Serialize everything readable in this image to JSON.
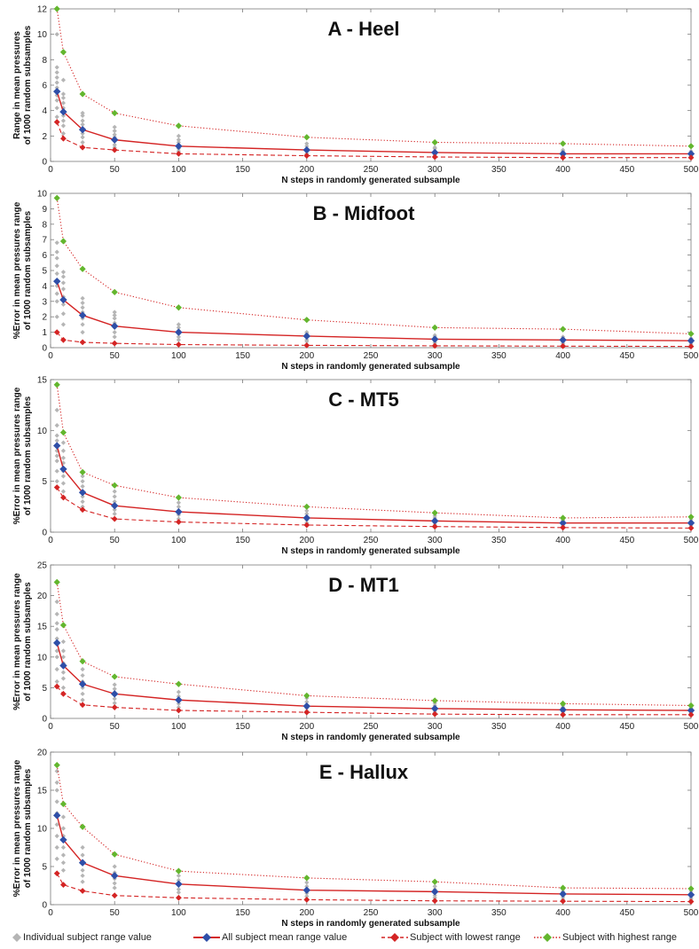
{
  "colors": {
    "individual": "#b5b5b5",
    "mean_line": "#d42424",
    "mean_marker": "#2f4fa8",
    "lowest": "#d42424",
    "highest_line": "#d42424",
    "highest_marker": "#63b62e"
  },
  "legend": {
    "individual": "Individual subject range value",
    "mean": "All subject mean range value",
    "lowest": "Subject with lowest range",
    "highest": "Subject with highest range"
  },
  "chart_data": [
    {
      "type": "line",
      "title": "A - Heel",
      "xlabel": "N steps in randomly generated subsample",
      "ylabel": [
        "Range in mean pressures",
        "of 1000 random subsamples"
      ],
      "xlim": [
        0,
        500
      ],
      "ylim": [
        0,
        12
      ],
      "yticks": [
        0,
        2,
        4,
        6,
        8,
        10,
        12
      ],
      "xticks": [
        0,
        50,
        100,
        150,
        200,
        250,
        300,
        350,
        400,
        450,
        500
      ],
      "x": [
        5,
        10,
        25,
        50,
        100,
        200,
        300,
        400,
        500
      ],
      "series": [
        {
          "name": "All subject mean range value",
          "values": [
            5.5,
            3.9,
            2.5,
            1.7,
            1.2,
            0.9,
            0.7,
            0.6,
            0.6
          ]
        },
        {
          "name": "Subject with lowest range",
          "values": [
            3.1,
            1.8,
            1.1,
            0.9,
            0.6,
            0.45,
            0.35,
            0.3,
            0.3
          ]
        },
        {
          "name": "Subject with highest range",
          "values": [
            12.0,
            8.6,
            5.3,
            3.8,
            2.8,
            1.9,
            1.5,
            1.4,
            1.2
          ]
        }
      ],
      "individual": [
        {
          "x": 5,
          "values": [
            3.5,
            4.2,
            4.8,
            5.2,
            5.8,
            6.2,
            6.6,
            7.0,
            7.4,
            10.0
          ]
        },
        {
          "x": 10,
          "values": [
            2.2,
            2.8,
            3.2,
            3.6,
            4.2,
            4.6,
            5.0,
            5.3,
            6.4
          ]
        },
        {
          "x": 25,
          "values": [
            1.5,
            1.9,
            2.2,
            2.6,
            2.9,
            3.2,
            3.6,
            3.8
          ]
        },
        {
          "x": 50,
          "values": [
            1.1,
            1.3,
            1.6,
            1.9,
            2.1,
            2.4,
            2.7
          ]
        },
        {
          "x": 100,
          "values": [
            0.8,
            1.0,
            1.3,
            1.5,
            1.7,
            2.0
          ]
        },
        {
          "x": 200,
          "values": [
            0.6,
            0.8,
            1.0,
            1.2,
            1.4
          ]
        },
        {
          "x": 300,
          "values": [
            0.5,
            0.6,
            0.8,
            1.0,
            1.1
          ]
        },
        {
          "x": 400,
          "values": [
            0.4,
            0.5,
            0.7,
            0.8,
            0.9
          ]
        },
        {
          "x": 500,
          "values": [
            0.4,
            0.5,
            0.6,
            0.7,
            0.8
          ]
        }
      ]
    },
    {
      "type": "line",
      "title": "B - Midfoot",
      "xlabel": "N steps in randomly generated subsample",
      "ylabel": [
        "%Error in mean pressures range",
        "of 1000 random subsamples"
      ],
      "xlim": [
        0,
        500
      ],
      "ylim": [
        0,
        10
      ],
      "yticks": [
        0,
        1,
        2,
        3,
        4,
        5,
        6,
        7,
        8,
        9,
        10
      ],
      "xticks": [
        0,
        50,
        100,
        150,
        200,
        250,
        300,
        350,
        400,
        450,
        500
      ],
      "x": [
        5,
        10,
        25,
        50,
        100,
        200,
        300,
        400,
        500
      ],
      "series": [
        {
          "name": "All subject mean range value",
          "values": [
            4.3,
            3.1,
            2.1,
            1.4,
            1.0,
            0.75,
            0.55,
            0.5,
            0.45
          ]
        },
        {
          "name": "Subject with lowest range",
          "values": [
            1.0,
            0.5,
            0.35,
            0.28,
            0.2,
            0.15,
            0.12,
            0.1,
            0.08
          ]
        },
        {
          "name": "Subject with highest range",
          "values": [
            9.7,
            6.9,
            5.1,
            3.6,
            2.6,
            1.8,
            1.3,
            1.2,
            0.9
          ]
        }
      ],
      "individual": [
        {
          "x": 5,
          "values": [
            2.0,
            3.0,
            3.5,
            4.0,
            4.8,
            5.3,
            5.8,
            6.2,
            6.8
          ]
        },
        {
          "x": 10,
          "values": [
            1.5,
            2.2,
            2.8,
            3.3,
            3.8,
            4.2,
            4.6,
            4.9
          ]
        },
        {
          "x": 25,
          "values": [
            1.0,
            1.5,
            1.9,
            2.3,
            2.6,
            2.9,
            3.2
          ]
        },
        {
          "x": 50,
          "values": [
            0.7,
            1.0,
            1.3,
            1.6,
            1.9,
            2.1,
            2.3
          ]
        },
        {
          "x": 100,
          "values": [
            0.5,
            0.7,
            0.9,
            1.1,
            1.3,
            1.5
          ]
        },
        {
          "x": 200,
          "values": [
            0.4,
            0.5,
            0.7,
            0.9,
            1.0
          ]
        },
        {
          "x": 300,
          "values": [
            0.3,
            0.4,
            0.5,
            0.7,
            0.8
          ]
        },
        {
          "x": 400,
          "values": [
            0.25,
            0.35,
            0.5,
            0.6,
            0.7
          ]
        },
        {
          "x": 500,
          "values": [
            0.2,
            0.3,
            0.4,
            0.5,
            0.6
          ]
        }
      ]
    },
    {
      "type": "line",
      "title": "C - MT5",
      "xlabel": "N steps in randomly generated subsample",
      "ylabel": [
        "%Error in mean pressures range",
        "of 1000 random subsamples"
      ],
      "xlim": [
        0,
        500
      ],
      "ylim": [
        0,
        15
      ],
      "yticks": [
        0,
        5,
        10,
        15
      ],
      "xticks": [
        0,
        50,
        100,
        150,
        200,
        250,
        300,
        350,
        400,
        450,
        500
      ],
      "x": [
        5,
        10,
        25,
        50,
        100,
        200,
        300,
        400,
        500
      ],
      "series": [
        {
          "name": "All subject mean range value",
          "values": [
            8.5,
            6.2,
            3.9,
            2.6,
            2.0,
            1.4,
            1.1,
            0.9,
            0.9
          ]
        },
        {
          "name": "Subject with lowest range",
          "values": [
            4.4,
            3.4,
            2.2,
            1.3,
            1.0,
            0.7,
            0.55,
            0.45,
            0.4
          ]
        },
        {
          "name": "Subject with highest range",
          "values": [
            14.5,
            9.8,
            5.9,
            4.6,
            3.4,
            2.5,
            1.9,
            1.4,
            1.5
          ]
        }
      ],
      "individual": [
        {
          "x": 5,
          "values": [
            5.0,
            6.0,
            7.0,
            7.5,
            8.0,
            9.0,
            9.5,
            10.5,
            12.0
          ]
        },
        {
          "x": 10,
          "values": [
            4.0,
            4.8,
            5.5,
            6.0,
            6.8,
            7.3,
            8.0,
            8.8
          ]
        },
        {
          "x": 25,
          "values": [
            2.5,
            3.0,
            3.5,
            4.0,
            4.5,
            5.0,
            5.5
          ]
        },
        {
          "x": 50,
          "values": [
            1.8,
            2.2,
            2.6,
            3.0,
            3.5,
            4.0
          ]
        },
        {
          "x": 100,
          "values": [
            1.3,
            1.7,
            2.1,
            2.5,
            2.9
          ]
        },
        {
          "x": 200,
          "values": [
            0.9,
            1.2,
            1.5,
            1.8,
            2.1
          ]
        },
        {
          "x": 300,
          "values": [
            0.7,
            0.9,
            1.2,
            1.4,
            1.6
          ]
        },
        {
          "x": 400,
          "values": [
            0.6,
            0.8,
            1.0,
            1.2
          ]
        },
        {
          "x": 500,
          "values": [
            0.5,
            0.7,
            0.9,
            1.1,
            1.3
          ]
        }
      ]
    },
    {
      "type": "line",
      "title": "D - MT1",
      "xlabel": "N steps in randomly generated subsample",
      "ylabel": [
        "%Error in mean pressures range",
        "of 1000 random subsamples"
      ],
      "xlim": [
        0,
        500
      ],
      "ylim": [
        0,
        25
      ],
      "yticks": [
        0,
        5,
        10,
        15,
        20,
        25
      ],
      "xticks": [
        0,
        50,
        100,
        150,
        200,
        250,
        300,
        350,
        400,
        450,
        500
      ],
      "x": [
        5,
        10,
        25,
        50,
        100,
        200,
        300,
        400,
        500
      ],
      "series": [
        {
          "name": "All subject mean range value",
          "values": [
            12.3,
            8.6,
            5.6,
            4.0,
            3.0,
            2.0,
            1.6,
            1.4,
            1.3
          ]
        },
        {
          "name": "Subject with lowest range",
          "values": [
            5.2,
            4.0,
            2.2,
            1.8,
            1.3,
            1.0,
            0.7,
            0.6,
            0.6
          ]
        },
        {
          "name": "Subject with highest range",
          "values": [
            22.2,
            15.2,
            9.3,
            6.8,
            5.6,
            3.7,
            2.9,
            2.4,
            2.1
          ]
        }
      ],
      "individual": [
        {
          "x": 5,
          "values": [
            6.0,
            8.0,
            10.0,
            11.0,
            13.0,
            14.5,
            15.5,
            17.0,
            19.0
          ]
        },
        {
          "x": 10,
          "values": [
            5.0,
            6.5,
            7.5,
            9.0,
            10.0,
            11.0,
            12.5
          ]
        },
        {
          "x": 25,
          "values": [
            3.0,
            4.0,
            5.0,
            6.0,
            7.0,
            8.0
          ]
        },
        {
          "x": 50,
          "values": [
            2.5,
            3.2,
            4.0,
            4.8,
            5.5
          ]
        },
        {
          "x": 100,
          "values": [
            1.8,
            2.4,
            3.0,
            3.6,
            4.3
          ]
        },
        {
          "x": 200,
          "values": [
            1.2,
            1.7,
            2.2,
            2.7,
            3.3
          ]
        },
        {
          "x": 300,
          "values": [
            1.0,
            1.3,
            1.7,
            2.1,
            2.5
          ]
        },
        {
          "x": 400,
          "values": [
            0.8,
            1.1,
            1.4,
            1.8,
            2.1
          ]
        },
        {
          "x": 500,
          "values": [
            0.8,
            1.0,
            1.3,
            1.6,
            1.9
          ]
        }
      ]
    },
    {
      "type": "line",
      "title": "E - Hallux",
      "xlabel": "N steps in randomly generated subsample",
      "ylabel": [
        "%Error in mean pressures range",
        "of 1000 random subsamples"
      ],
      "xlim": [
        0,
        500
      ],
      "ylim": [
        0,
        20
      ],
      "yticks": [
        0,
        5,
        10,
        15,
        20
      ],
      "xticks": [
        0,
        50,
        100,
        150,
        200,
        250,
        300,
        350,
        400,
        450,
        500
      ],
      "x": [
        5,
        10,
        25,
        50,
        100,
        200,
        300,
        400,
        500
      ],
      "series": [
        {
          "name": "All subject mean range value",
          "values": [
            11.7,
            8.5,
            5.5,
            3.8,
            2.7,
            1.9,
            1.7,
            1.4,
            1.3
          ]
        },
        {
          "name": "Subject with lowest range",
          "values": [
            4.1,
            2.6,
            1.8,
            1.2,
            0.9,
            0.65,
            0.5,
            0.45,
            0.4
          ]
        },
        {
          "name": "Subject with highest range",
          "values": [
            18.3,
            13.2,
            10.2,
            6.6,
            4.4,
            3.5,
            3.0,
            2.2,
            2.1
          ]
        }
      ],
      "individual": [
        {
          "x": 5,
          "values": [
            6.0,
            7.5,
            9.0,
            10.5,
            12.0,
            13.5,
            15.0,
            16.0,
            17.5
          ]
        },
        {
          "x": 10,
          "values": [
            4.5,
            5.5,
            6.5,
            7.5,
            9.0,
            10.0,
            11.5
          ]
        },
        {
          "x": 25,
          "values": [
            3.0,
            3.8,
            4.5,
            5.5,
            6.5,
            7.5
          ]
        },
        {
          "x": 50,
          "values": [
            2.2,
            2.8,
            3.4,
            4.2,
            5.0
          ]
        },
        {
          "x": 100,
          "values": [
            1.6,
            2.0,
            2.6,
            3.2,
            3.8
          ]
        },
        {
          "x": 200,
          "values": [
            1.1,
            1.5,
            1.9,
            2.4,
            2.9
          ]
        },
        {
          "x": 300,
          "values": [
            0.9,
            1.2,
            1.6,
            2.0,
            2.4
          ]
        },
        {
          "x": 400,
          "values": [
            0.7,
            1.0,
            1.3,
            1.7,
            2.0
          ]
        },
        {
          "x": 500,
          "values": [
            0.7,
            0.9,
            1.2,
            1.5,
            1.8
          ]
        }
      ]
    }
  ]
}
